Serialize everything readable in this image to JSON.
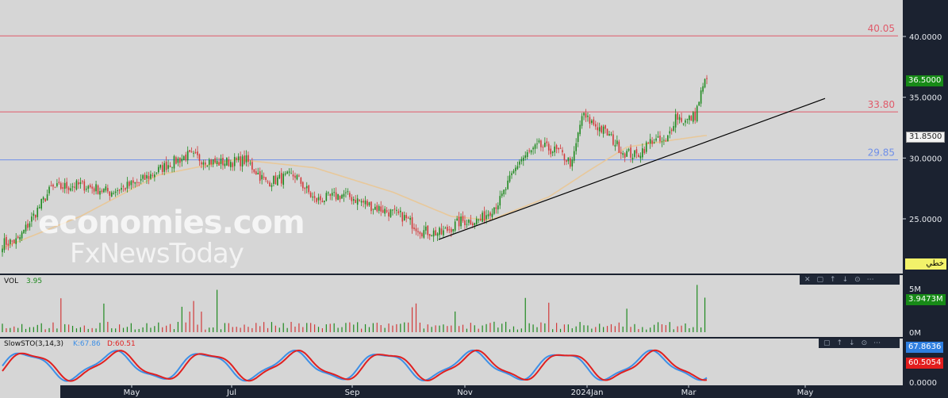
{
  "chart_data": {
    "type": "candlestick",
    "x_ticks": [
      "May",
      "Jul",
      "Sep",
      "Nov",
      "2024Jan",
      "Mar",
      "May"
    ],
    "price_axis": {
      "ticks": [
        "40.0000",
        "35.0000",
        "30.0000",
        "25.0000"
      ],
      "last_price": "36.5000",
      "ma_value": "31.8500",
      "range": [
        20.5,
        43.0
      ]
    },
    "levels": [
      {
        "label": "40.05",
        "value": 40.05,
        "color": "#e05a6a"
      },
      {
        "label": "33.80",
        "value": 33.8,
        "color": "#e05a6a"
      },
      {
        "label": "29.85",
        "value": 29.85,
        "color": "#6f8fe8"
      }
    ],
    "trendline": {
      "from": [
        "Oct 2023",
        23.3
      ],
      "to": [
        "May 2024",
        34.9
      ]
    },
    "price_keypoints": [
      [
        0,
        23.0
      ],
      [
        8,
        23.2
      ],
      [
        15,
        25.0
      ],
      [
        25,
        27.5
      ],
      [
        40,
        27.8
      ],
      [
        55,
        27.2
      ],
      [
        70,
        28.0
      ],
      [
        85,
        29.5
      ],
      [
        95,
        30.2
      ],
      [
        110,
        29.6
      ],
      [
        125,
        29.8
      ],
      [
        135,
        28.0
      ],
      [
        150,
        28.6
      ],
      [
        160,
        26.5
      ],
      [
        175,
        27.0
      ],
      [
        190,
        26.0
      ],
      [
        205,
        25.2
      ],
      [
        215,
        24.0
      ],
      [
        225,
        23.8
      ],
      [
        235,
        24.8
      ],
      [
        245,
        24.9
      ],
      [
        255,
        26.5
      ],
      [
        265,
        29.8
      ],
      [
        275,
        31.0
      ],
      [
        285,
        30.5
      ],
      [
        292,
        29.5
      ],
      [
        297,
        33.5
      ],
      [
        303,
        32.8
      ],
      [
        310,
        32.0
      ],
      [
        318,
        30.5
      ],
      [
        325,
        30.2
      ],
      [
        333,
        31.5
      ],
      [
        340,
        31.2
      ],
      [
        345,
        33.5
      ],
      [
        350,
        33.0
      ],
      [
        355,
        33.5
      ],
      [
        360,
        36.5
      ]
    ],
    "ma_keypoints": [
      [
        0,
        22.6
      ],
      [
        40,
        25.2
      ],
      [
        80,
        28.6
      ],
      [
        120,
        29.9
      ],
      [
        160,
        29.2
      ],
      [
        200,
        27.2
      ],
      [
        230,
        25.2
      ],
      [
        250,
        24.9
      ],
      [
        280,
        26.8
      ],
      [
        300,
        28.9
      ],
      [
        320,
        30.9
      ],
      [
        340,
        31.4
      ],
      [
        360,
        31.85
      ]
    ],
    "volume": {
      "label": "VOL",
      "value": "3.95",
      "axis_ticks": [
        "5M",
        "0M"
      ],
      "current": "3.9473M",
      "max": 5.8
    },
    "stochastic": {
      "label": "SlowSTO(3,14,3)",
      "k_label": "K:67.86",
      "d_label": "D:60.51",
      "k_value": "67.8636",
      "d_value": "60.5054",
      "axis_tick": "0.0000",
      "k_color": "#3d8fe6",
      "d_color": "#e02020"
    },
    "colors": {
      "up": "#1f8a1f",
      "down": "#d23a3a",
      "ma": "#e8c89a",
      "trend": "#000000"
    }
  },
  "watermark": {
    "line1": "economies.com",
    "line2": "FxNewsToday"
  },
  "badge": {
    "text": "خطي"
  }
}
